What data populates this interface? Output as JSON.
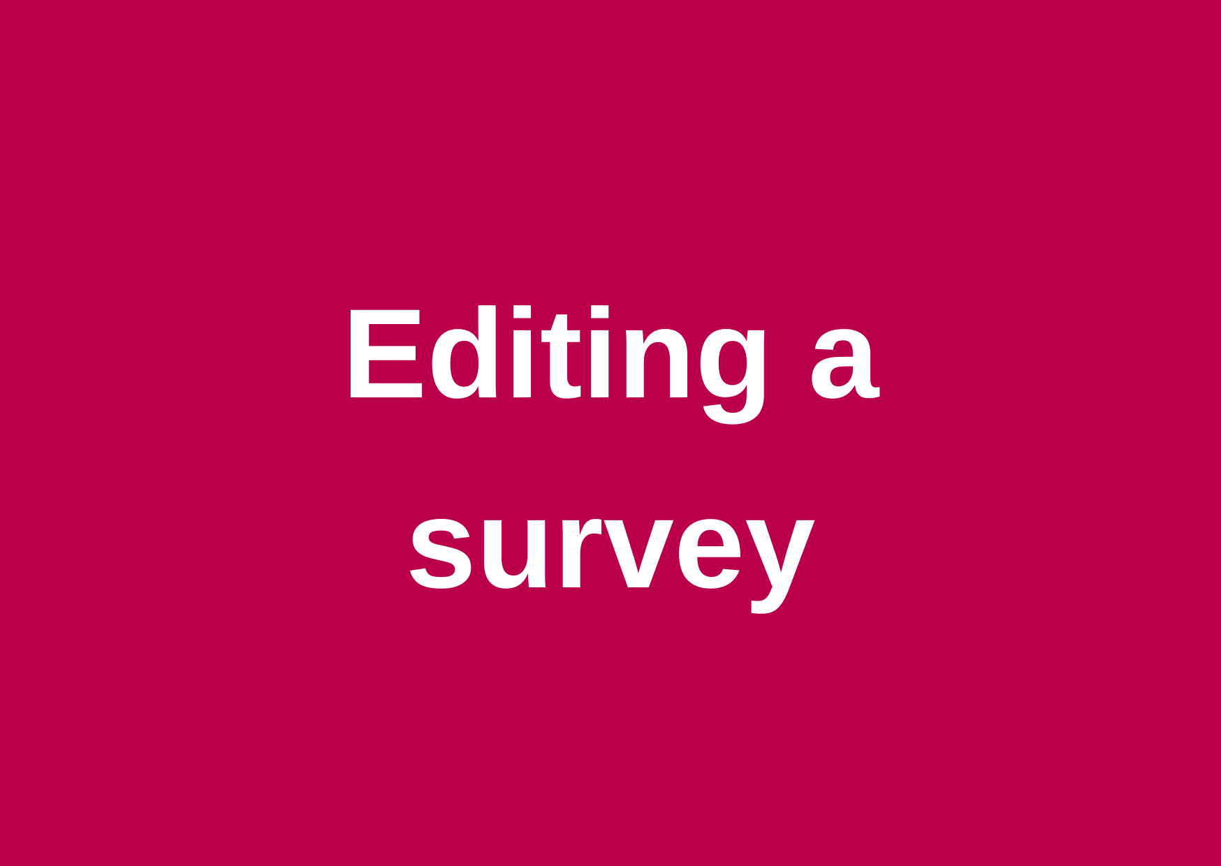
{
  "slide": {
    "background_color": "#BB004B",
    "text_color": "#FFFFFF",
    "title_lines": [
      "Editing a",
      "survey"
    ]
  }
}
